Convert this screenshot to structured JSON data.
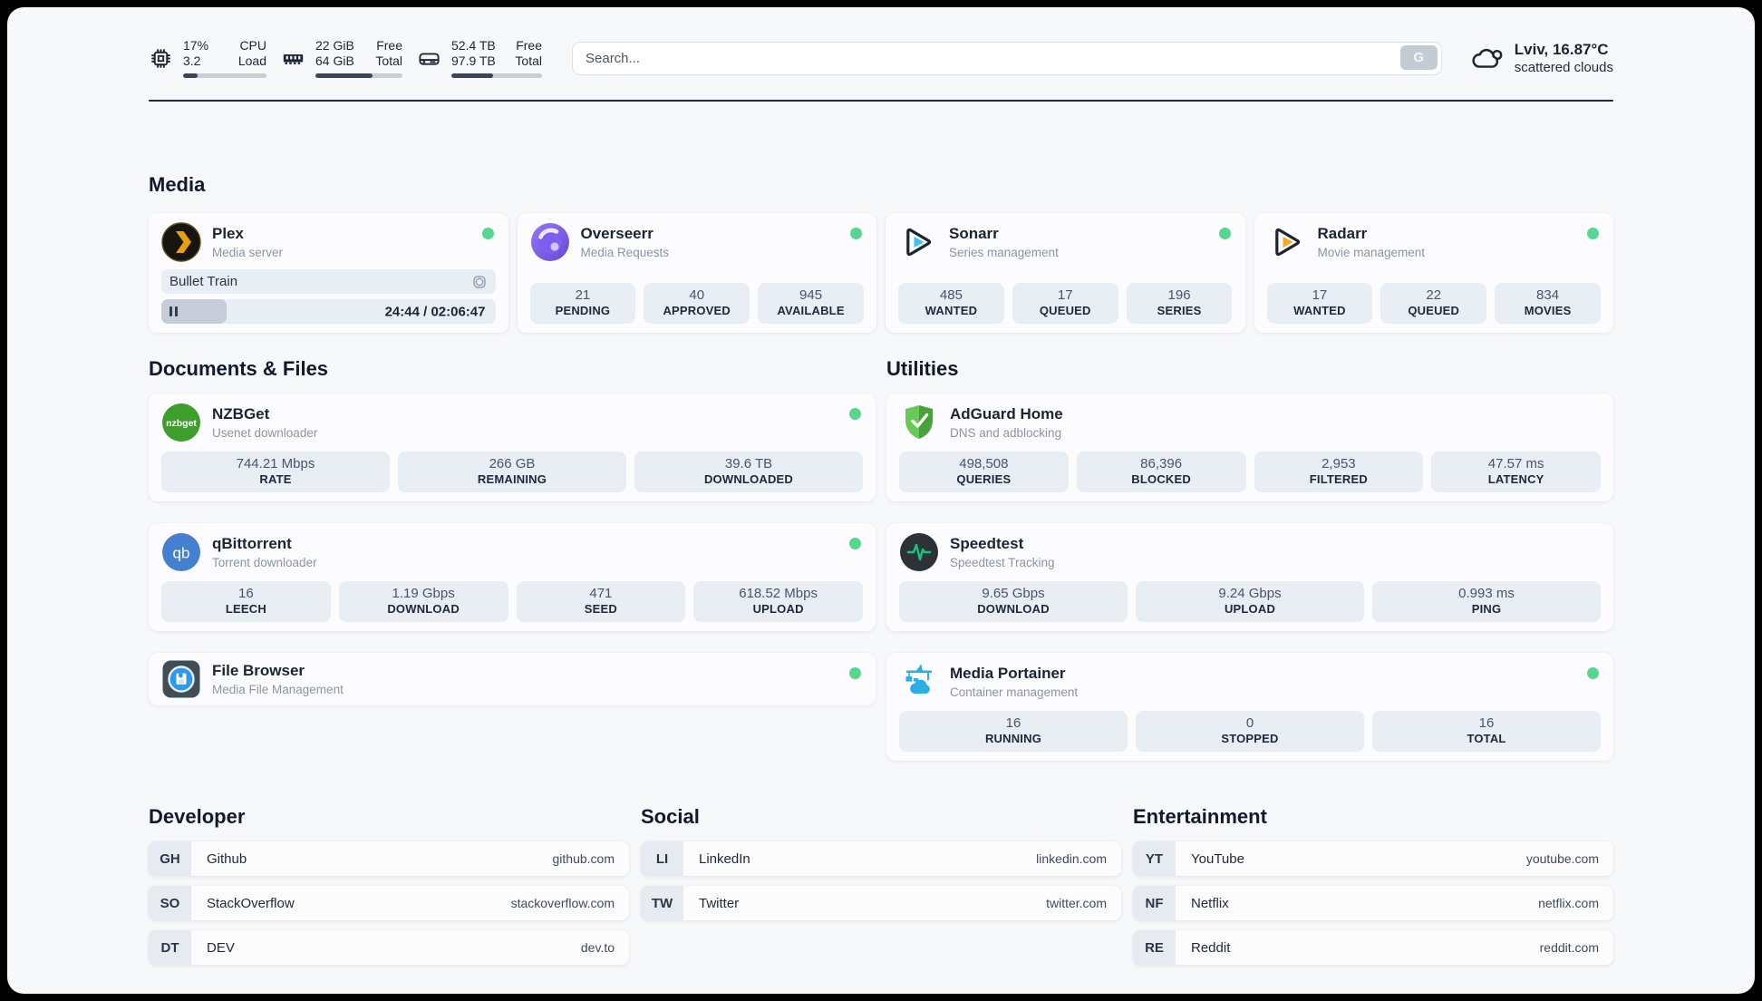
{
  "header": {
    "stats": [
      {
        "icon": "cpu-icon",
        "values": [
          "17%",
          "3.2"
        ],
        "labels": [
          "CPU",
          "Load"
        ],
        "progress": 17
      },
      {
        "icon": "ram-icon",
        "values": [
          "22 GiB",
          "64 GiB"
        ],
        "labels": [
          "Free",
          "Total"
        ],
        "progress": 66
      },
      {
        "icon": "disk-icon",
        "values": [
          "52.4 TB",
          "97.9 TB"
        ],
        "labels": [
          "Free",
          "Total"
        ],
        "progress": 46
      }
    ],
    "search": {
      "placeholder": "Search...",
      "button_label": "G"
    },
    "weather": {
      "location": "Lviv, 16.87°C",
      "condition": "scattered clouds"
    }
  },
  "sections": {
    "media": {
      "title": "Media",
      "plex": {
        "name": "Plex",
        "desc": "Media server",
        "now_playing": "Bullet Train",
        "time": "24:44 / 02:06:47",
        "progress": 19.5
      },
      "overseerr": {
        "name": "Overseerr",
        "desc": "Media Requests",
        "stats": [
          {
            "v": "21",
            "l": "PENDING"
          },
          {
            "v": "40",
            "l": "APPROVED"
          },
          {
            "v": "945",
            "l": "AVAILABLE"
          }
        ]
      },
      "sonarr": {
        "name": "Sonarr",
        "desc": "Series management",
        "stats": [
          {
            "v": "485",
            "l": "WANTED"
          },
          {
            "v": "17",
            "l": "QUEUED"
          },
          {
            "v": "196",
            "l": "SERIES"
          }
        ]
      },
      "radarr": {
        "name": "Radarr",
        "desc": "Movie management",
        "stats": [
          {
            "v": "17",
            "l": "WANTED"
          },
          {
            "v": "22",
            "l": "QUEUED"
          },
          {
            "v": "834",
            "l": "MOVIES"
          }
        ]
      }
    },
    "documents": {
      "title": "Documents & Files",
      "nzbget": {
        "name": "NZBGet",
        "desc": "Usenet downloader",
        "stats": [
          {
            "v": "744.21 Mbps",
            "l": "RATE"
          },
          {
            "v": "266 GB",
            "l": "REMAINING"
          },
          {
            "v": "39.6 TB",
            "l": "DOWNLOADED"
          }
        ]
      },
      "qbittorrent": {
        "name": "qBittorrent",
        "desc": "Torrent downloader",
        "stats": [
          {
            "v": "16",
            "l": "LEECH"
          },
          {
            "v": "1.19 Gbps",
            "l": "DOWNLOAD"
          },
          {
            "v": "471",
            "l": "SEED"
          },
          {
            "v": "618.52 Mbps",
            "l": "UPLOAD"
          }
        ]
      },
      "filebrowser": {
        "name": "File Browser",
        "desc": "Media File Management"
      }
    },
    "utilities": {
      "title": "Utilities",
      "adguard": {
        "name": "AdGuard Home",
        "desc": "DNS and adblocking",
        "stats": [
          {
            "v": "498,508",
            "l": "QUERIES"
          },
          {
            "v": "86,396",
            "l": "BLOCKED"
          },
          {
            "v": "2,953",
            "l": "FILTERED"
          },
          {
            "v": "47.57 ms",
            "l": "LATENCY"
          }
        ]
      },
      "speedtest": {
        "name": "Speedtest",
        "desc": "Speedtest Tracking",
        "stats": [
          {
            "v": "9.65 Gbps",
            "l": "DOWNLOAD"
          },
          {
            "v": "9.24 Gbps",
            "l": "UPLOAD"
          },
          {
            "v": "0.993 ms",
            "l": "PING"
          }
        ]
      },
      "portainer": {
        "name": "Media Portainer",
        "desc": "Container management",
        "stats": [
          {
            "v": "16",
            "l": "RUNNING"
          },
          {
            "v": "0",
            "l": "STOPPED"
          },
          {
            "v": "16",
            "l": "TOTAL"
          }
        ]
      }
    },
    "bookmarks": [
      {
        "title": "Developer",
        "links": [
          {
            "abbr": "GH",
            "name": "Github",
            "url": "github.com"
          },
          {
            "abbr": "SO",
            "name": "StackOverflow",
            "url": "stackoverflow.com"
          },
          {
            "abbr": "DT",
            "name": "DEV",
            "url": "dev.to"
          }
        ]
      },
      {
        "title": "Social",
        "links": [
          {
            "abbr": "LI",
            "name": "LinkedIn",
            "url": "linkedin.com"
          },
          {
            "abbr": "TW",
            "name": "Twitter",
            "url": "twitter.com"
          }
        ]
      },
      {
        "title": "Entertainment",
        "links": [
          {
            "abbr": "YT",
            "name": "YouTube",
            "url": "youtube.com"
          },
          {
            "abbr": "NF",
            "name": "Netflix",
            "url": "netflix.com"
          },
          {
            "abbr": "RE",
            "name": "Reddit",
            "url": "reddit.com"
          }
        ]
      }
    ]
  },
  "colors": {
    "status_green": "#55d78f",
    "plex_amber": "#e8a00d",
    "sonarr_cyan": "#36c6f4",
    "radarr_orange": "#f6a723",
    "adguard_green": "#59b949",
    "nzbget_green": "#3d9e2c",
    "qbittorrent_blue": "#4580d0",
    "portainer_blue": "#2baee3",
    "speedtest_pulse": "#17c27d",
    "page_background": "#f7f8fa",
    "stat_box_background": "#e9edf4",
    "text_dark": "#1c2534"
  }
}
